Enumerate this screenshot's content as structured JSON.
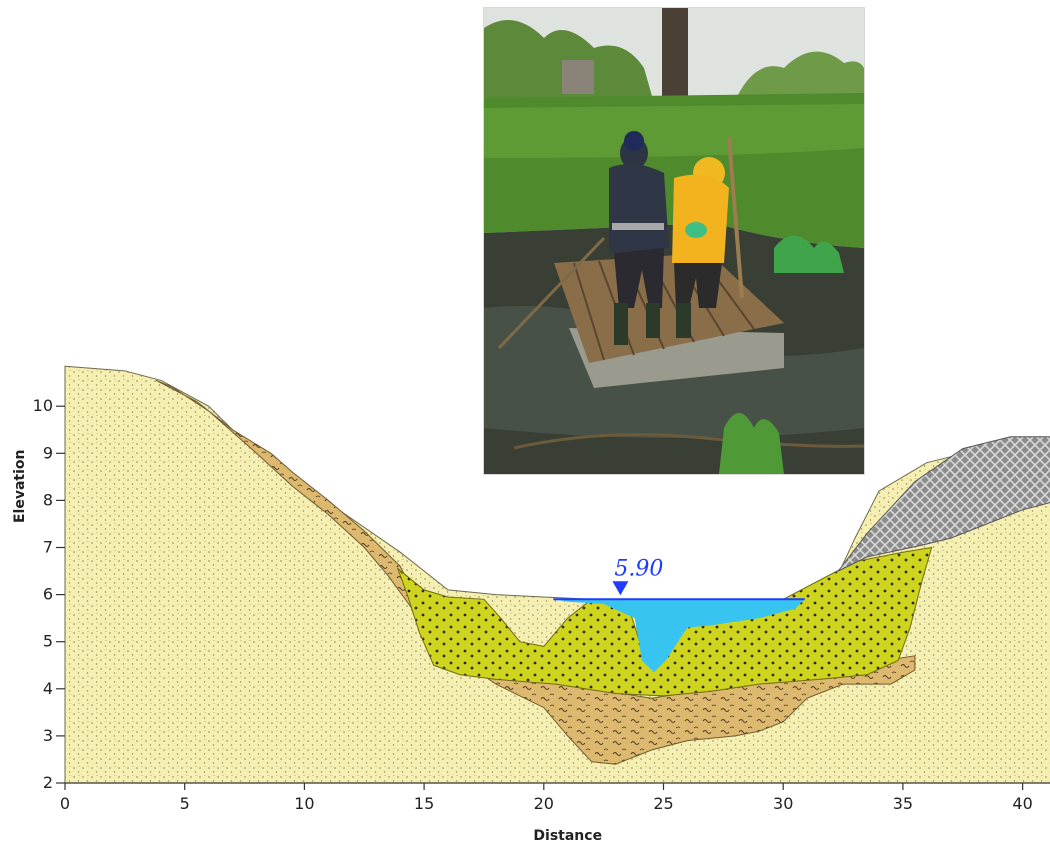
{
  "axes": {
    "x_label": "Distance",
    "y_label": "Elevation",
    "x_ticks": [
      0,
      5,
      10,
      15,
      20,
      25,
      30,
      35,
      40
    ],
    "y_ticks": [
      2,
      3,
      4,
      5,
      6,
      7,
      8,
      9,
      10
    ],
    "x_range": [
      0,
      41.5
    ],
    "y_range": [
      2,
      11
    ]
  },
  "water_level": {
    "value": "5.90",
    "elevation": 5.9,
    "station": 23.2,
    "color": "#1f3cff"
  },
  "layers": {
    "sand_color": "#f5efb2",
    "silt_color": "#ddb86f",
    "organic_color": "#cfd41e",
    "rock_color": "#8c8c8c",
    "water_color": "#38c4f0"
  },
  "photo": {
    "description": "field crew on floating platform"
  }
}
